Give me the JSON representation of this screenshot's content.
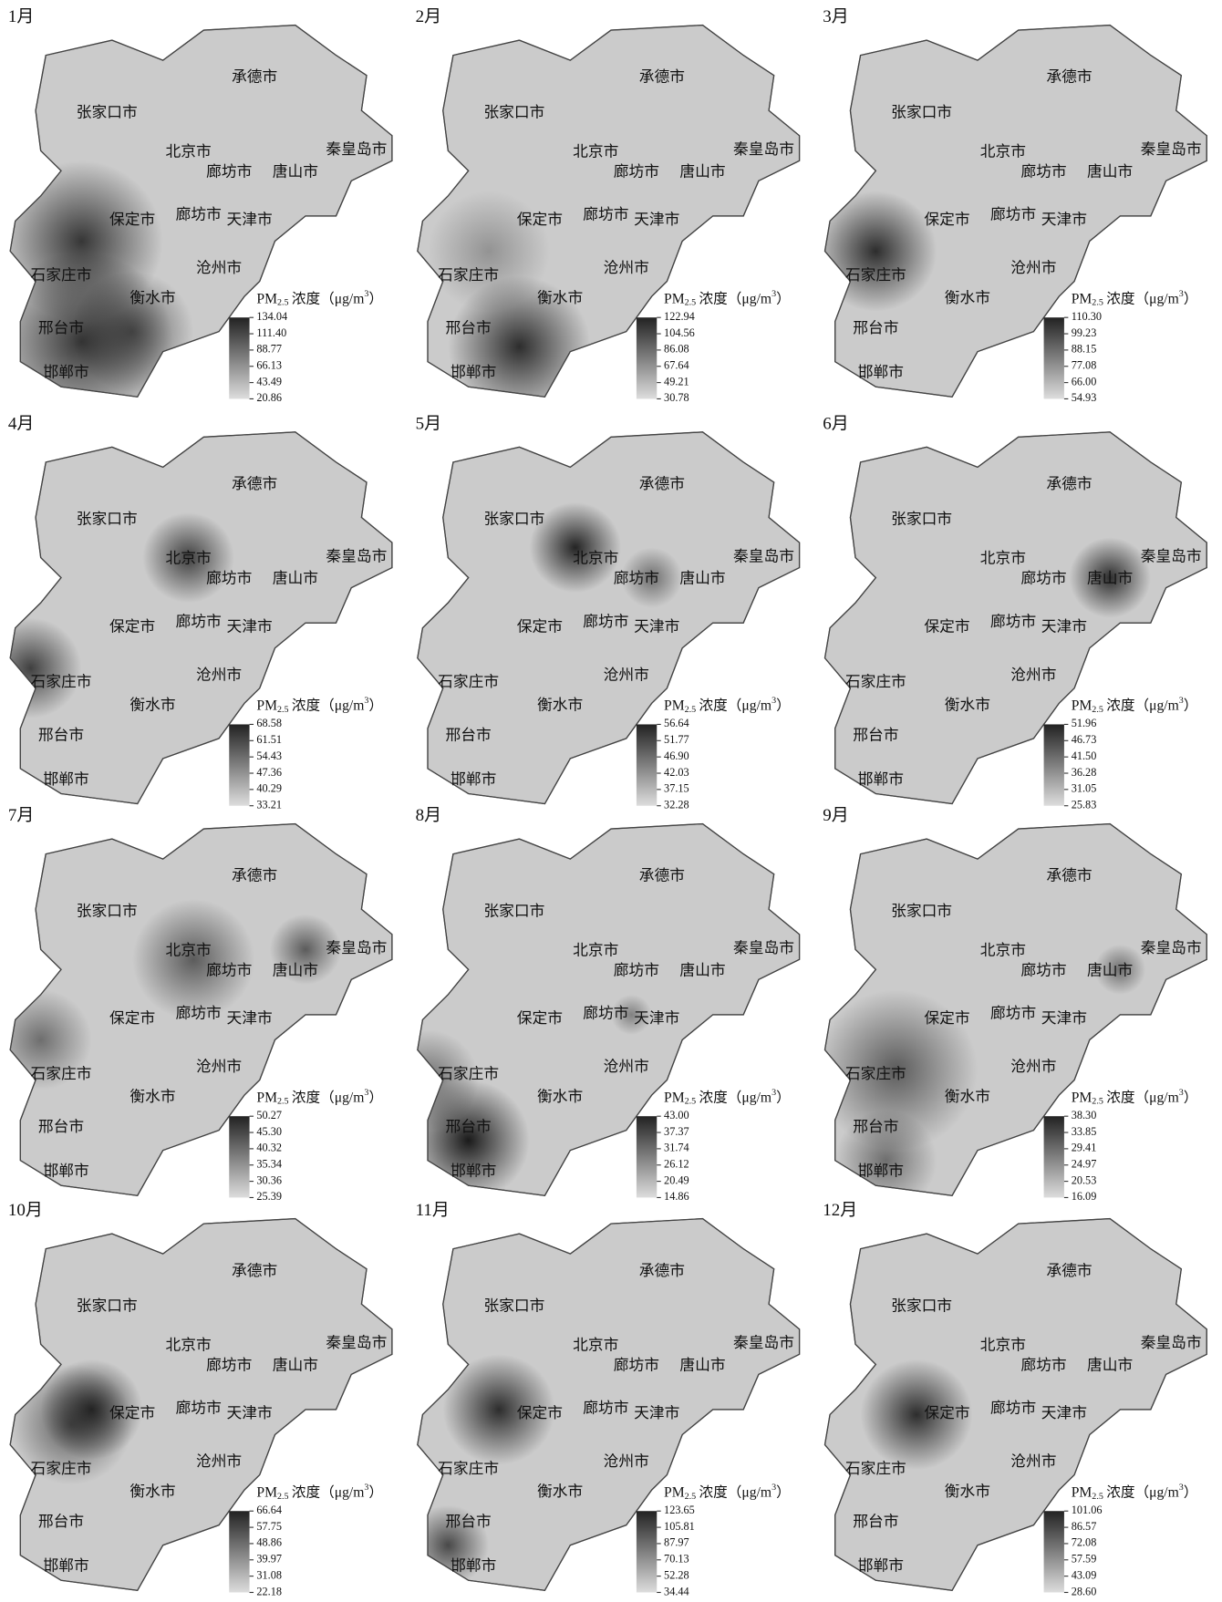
{
  "legend_title": {
    "base": "PM",
    "sub": "2.5",
    "unit": "浓度（μg/m",
    "sup": "3",
    "close": "）"
  },
  "cities": [
    "张家口市",
    "承德市",
    "北京市",
    "秦皇岛市",
    "廊坊市",
    "唐山市",
    "保定市",
    "廊坊市",
    "天津市",
    "石家庄市",
    "沧州市",
    "衡水市",
    "邢台市",
    "邯郸市"
  ],
  "panels": [
    {
      "month": "1月",
      "legend_ticks": [
        134.04,
        {
          "value": 111.4,
          "label": "111.40"
        },
        88.77,
        66.13,
        43.49,
        20.86
      ]
    },
    {
      "month": "2月",
      "legend_ticks": [
        122.94,
        104.56,
        86.08,
        67.64,
        49.21,
        30.78
      ]
    },
    {
      "month": "3月",
      "legend_ticks": [
        {
          "value": 110.3,
          "label": "110.30"
        },
        99.23,
        88.15,
        77.08,
        {
          "value": 66,
          "label": "66.00"
        },
        54.93
      ]
    },
    {
      "month": "4月",
      "legend_ticks": [
        68.58,
        61.51,
        54.43,
        47.36,
        40.29,
        33.21
      ]
    },
    {
      "month": "5月",
      "legend_ticks": [
        56.64,
        51.77,
        {
          "value": 46.9,
          "label": "46.90"
        },
        42.03,
        37.15,
        32.28
      ]
    },
    {
      "month": "6月",
      "legend_ticks": [
        51.96,
        46.73,
        {
          "value": 41.5,
          "label": "41.50"
        },
        36.28,
        31.05,
        25.83
      ]
    },
    {
      "month": "7月",
      "legend_ticks": [
        50.27,
        {
          "value": 45.3,
          "label": "45.30"
        },
        40.32,
        35.34,
        30.36,
        25.39
      ]
    },
    {
      "month": "8月",
      "legend_ticks": [
        {
          "value": 43,
          "label": "43.00"
        },
        37.37,
        31.74,
        26.12,
        20.49,
        14.86
      ]
    },
    {
      "month": "9月",
      "legend_ticks": [
        {
          "value": 38.3,
          "label": "38.30"
        },
        33.85,
        29.41,
        24.97,
        20.53,
        16.09
      ]
    },
    {
      "month": "10月",
      "legend_ticks": [
        66.64,
        57.75,
        48.86,
        39.97,
        31.08,
        22.18
      ]
    },
    {
      "month": "11月",
      "legend_ticks": [
        123.65,
        105.81,
        87.97,
        70.13,
        52.28,
        34.44
      ]
    },
    {
      "month": "12月",
      "legend_ticks": [
        101.06,
        86.57,
        72.08,
        57.59,
        43.09,
        {
          "value": 28.6,
          "label": "28.60"
        }
      ]
    }
  ]
}
